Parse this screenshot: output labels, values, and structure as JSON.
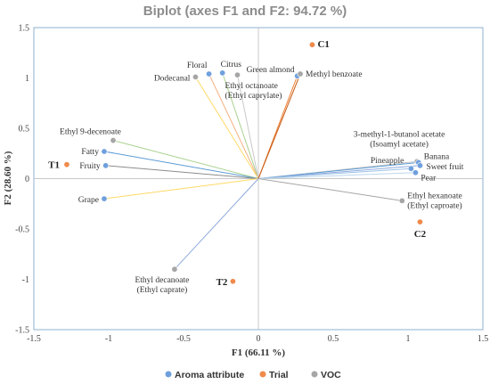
{
  "chart_data": {
    "type": "scatter",
    "title": "Biplot (axes F1 and F2: 94.72 %)",
    "xlabel": "F1 (66.11 %)",
    "ylabel": "F2 (28.60 %)",
    "xlim": [
      -1.5,
      1.5
    ],
    "ylim": [
      -1.5,
      1.5
    ],
    "xticks": [
      "-1.5",
      "-1",
      "-0.5",
      "0",
      "0.5",
      "1",
      "1.5"
    ],
    "yticks": [
      "1.5",
      "1",
      "0.5",
      "0",
      "-0.5",
      "-1",
      "-1.5"
    ],
    "legend_position": "bottom",
    "groups": [
      {
        "name": "Aroma attribute",
        "color": "#6fa0dc"
      },
      {
        "name": "Trial",
        "color": "#f08a4b"
      },
      {
        "name": "VOC",
        "color": "#a6a6a6"
      }
    ],
    "points": [
      {
        "label": "C1",
        "group": "Trial",
        "x": 0.36,
        "y": 1.33,
        "line": false,
        "line_color": "",
        "lines": []
      },
      {
        "label": "Floral",
        "group": "Aroma attribute",
        "x": -0.33,
        "y": 1.04,
        "line": true,
        "line_color": "#f4b183",
        "lines": [
          "Floral"
        ]
      },
      {
        "label": "Citrus",
        "group": "Aroma attribute",
        "x": -0.24,
        "y": 1.05,
        "line": true,
        "line_color": "#a9d18e",
        "lines": [
          "Citrus"
        ]
      },
      {
        "label": "Dodecanal",
        "group": "VOC",
        "x": -0.42,
        "y": 1.01,
        "line": true,
        "line_color": "#ffd966",
        "lines": [
          "Dodecanal"
        ]
      },
      {
        "label": "Ethyl octanoate (Ethyl caprylate)",
        "group": "VOC",
        "x": -0.14,
        "y": 1.03,
        "line": true,
        "line_color": "#c9c9c9",
        "lines": [
          "Ethyl octanoate",
          "(Ethyl caprylate)"
        ]
      },
      {
        "label": "Green almond",
        "group": "Aroma attribute",
        "x": 0.26,
        "y": 1.02,
        "line": true,
        "line_color": "#ed7d31",
        "lines": [
          "Green almond"
        ]
      },
      {
        "label": "Methyl benzoate",
        "group": "VOC",
        "x": 0.28,
        "y": 1.04,
        "line": true,
        "line_color": "#c55a11",
        "lines": [
          "Methyl benzoate"
        ]
      },
      {
        "label": "Ethyl 9-decenoate",
        "group": "VOC",
        "x": -0.97,
        "y": 0.38,
        "line": true,
        "line_color": "#a9d18e",
        "lines": [
          "Ethyl 9-decenoate"
        ]
      },
      {
        "label": "Fatty",
        "group": "Aroma attribute",
        "x": -1.03,
        "y": 0.27,
        "line": true,
        "line_color": "#5b9bd5",
        "lines": [
          "Fatty"
        ]
      },
      {
        "label": "Fruity",
        "group": "Aroma attribute",
        "x": -1.02,
        "y": 0.13,
        "line": true,
        "line_color": "#8c8c8c",
        "lines": [
          "Fruity"
        ]
      },
      {
        "label": "T1",
        "group": "Trial",
        "x": -1.28,
        "y": 0.14,
        "line": false,
        "line_color": "",
        "lines": []
      },
      {
        "label": "Grape",
        "group": "Aroma attribute",
        "x": -1.03,
        "y": -0.2,
        "line": true,
        "line_color": "#ffd966",
        "lines": [
          "Grape"
        ]
      },
      {
        "label": "3-methyl-1-butanol acetate (Isoamyl acetate)",
        "group": "VOC",
        "x": 1.06,
        "y": 0.17,
        "line": true,
        "line_color": "#c9c9c9",
        "lines": [
          "3-methyl-1-butanol acetate",
          "(Isoamyl acetate)"
        ]
      },
      {
        "label": "Banana",
        "group": "Aroma attribute",
        "x": 1.07,
        "y": 0.16,
        "line": true,
        "line_color": "#5b9bd5",
        "lines": [
          "Banana"
        ]
      },
      {
        "label": "Sweet fruit",
        "group": "Aroma attribute",
        "x": 1.08,
        "y": 0.13,
        "line": true,
        "line_color": "#8faadc",
        "lines": [
          "Sweet fruit"
        ]
      },
      {
        "label": "Pineapple",
        "group": "Aroma attribute",
        "x": 1.02,
        "y": 0.1,
        "line": true,
        "line_color": "#9dc3e6",
        "lines": [
          "Pineapple"
        ]
      },
      {
        "label": "Pear",
        "group": "Aroma attribute",
        "x": 1.05,
        "y": 0.06,
        "line": true,
        "line_color": "#bdd7ee",
        "lines": [
          "Pear"
        ]
      },
      {
        "label": "Ethyl hexanoate (Ethyl caproate)",
        "group": "VOC",
        "x": 0.96,
        "y": -0.22,
        "line": true,
        "line_color": "#a6a6a6",
        "lines": [
          "Ethyl hexanoate",
          "(Ethyl caproate)"
        ]
      },
      {
        "label": "C2",
        "group": "Trial",
        "x": 1.08,
        "y": -0.43,
        "line": false,
        "line_color": "",
        "lines": []
      },
      {
        "label": "Ethyl decanoate (Ethyl caprate)",
        "group": "VOC",
        "x": -0.56,
        "y": -0.9,
        "line": true,
        "line_color": "#8faadc",
        "lines": [
          "Ethyl decanoate",
          "(Ethyl caprate)"
        ]
      },
      {
        "label": "T2",
        "group": "Trial",
        "x": -0.17,
        "y": -1.02,
        "line": false,
        "line_color": "",
        "lines": []
      }
    ]
  }
}
